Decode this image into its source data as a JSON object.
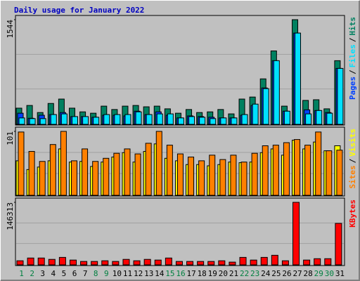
{
  "chart_data": [
    {
      "type": "bar",
      "title": "Daily usage for January 2022",
      "categories": [
        "1",
        "2",
        "3",
        "4",
        "5",
        "6",
        "7",
        "8",
        "9",
        "10",
        "11",
        "12",
        "13",
        "14",
        "15",
        "16",
        "17",
        "18",
        "19",
        "20",
        "21",
        "22",
        "23",
        "24",
        "25",
        "26",
        "27",
        "28",
        "29",
        "30",
        "31"
      ],
      "legend_separator": "/",
      "series": [
        {
          "name": "Hits",
          "color": "#008060",
          "values": [
            230,
            270,
            165,
            300,
            365,
            230,
            175,
            155,
            260,
            210,
            260,
            270,
            250,
            260,
            220,
            155,
            210,
            165,
            175,
            210,
            145,
            365,
            395,
            665,
            1080,
            260,
            1544,
            345,
            355,
            220,
            935
          ]
        },
        {
          "name": "Files",
          "color": "#00e0ff",
          "values": [
            85,
            75,
            75,
            135,
            145,
            105,
            105,
            95,
            135,
            135,
            135,
            175,
            135,
            145,
            145,
            85,
            105,
            95,
            75,
            85,
            85,
            135,
            290,
            520,
            935,
            185,
            1345,
            145,
            195,
            155,
            820
          ]
        },
        {
          "name": "Pages",
          "color": "#0040ff",
          "values": [
            155,
            80,
            125,
            135,
            165,
            105,
            105,
            95,
            125,
            125,
            115,
            185,
            135,
            175,
            125,
            85,
            115,
            105,
            95,
            85,
            85,
            125,
            270,
            530,
            935,
            185,
            1345,
            205,
            195,
            165,
            820
          ]
        }
      ],
      "ylim": [
        0,
        1544
      ],
      "yticks": [
        1544
      ]
    },
    {
      "type": "bar",
      "categories": [
        "1",
        "2",
        "3",
        "4",
        "5",
        "6",
        "7",
        "8",
        "9",
        "10",
        "11",
        "12",
        "13",
        "14",
        "15",
        "16",
        "17",
        "18",
        "19",
        "20",
        "21",
        "22",
        "23",
        "24",
        "25",
        "26",
        "27",
        "28",
        "29",
        "30",
        "31"
      ],
      "legend_separator": "/",
      "series": [
        {
          "name": "Visits",
          "color": "#ffff00",
          "values": [
            54,
            40,
            44,
            54,
            73,
            52,
            53,
            45,
            52,
            60,
            67,
            52,
            69,
            81,
            58,
            54,
            48,
            48,
            46,
            48,
            52,
            51,
            52,
            67,
            73,
            63,
            87,
            73,
            84,
            70,
            78
          ]
        },
        {
          "name": "Sites",
          "color": "#ff8000",
          "values": [
            100,
            69,
            53,
            80,
            101,
            54,
            73,
            53,
            58,
            66,
            73,
            65,
            82,
            101,
            79,
            65,
            60,
            54,
            63,
            56,
            63,
            52,
            66,
            78,
            79,
            83,
            88,
            79,
            100,
            70,
            71
          ]
        }
      ],
      "ylim": [
        0,
        101
      ],
      "yticks": [
        101
      ]
    },
    {
      "type": "bar",
      "categories": [
        "1",
        "2",
        "3",
        "4",
        "5",
        "6",
        "7",
        "8",
        "9",
        "10",
        "11",
        "12",
        "13",
        "14",
        "15",
        "16",
        "17",
        "18",
        "19",
        "20",
        "21",
        "22",
        "23",
        "24",
        "25",
        "26",
        "27",
        "28",
        "29",
        "30",
        "31"
      ],
      "category_colors": [
        "#008040",
        "#008040",
        "#000000",
        "#000000",
        "#000000",
        "#000000",
        "#000000",
        "#008040",
        "#008040",
        "#000000",
        "#000000",
        "#000000",
        "#000000",
        "#000000",
        "#008040",
        "#008040",
        "#000000",
        "#000000",
        "#000000",
        "#000000",
        "#000000",
        "#008040",
        "#008040",
        "#000000",
        "#000000",
        "#000000",
        "#000000",
        "#000000",
        "#008040",
        "#008040",
        "#000000"
      ],
      "series": [
        {
          "name": "KBytes",
          "color": "#ff0000",
          "values": [
            8000,
            14500,
            14500,
            11300,
            16000,
            9700,
            6400,
            6400,
            8000,
            6400,
            11300,
            8000,
            11300,
            9700,
            14500,
            6400,
            6400,
            6400,
            6400,
            8000,
            4800,
            16000,
            9700,
            16000,
            21000,
            8000,
            146313,
            9700,
            12900,
            12900,
            96500
          ]
        }
      ],
      "ylim": [
        0,
        146313
      ],
      "yticks": [
        146313
      ]
    }
  ]
}
